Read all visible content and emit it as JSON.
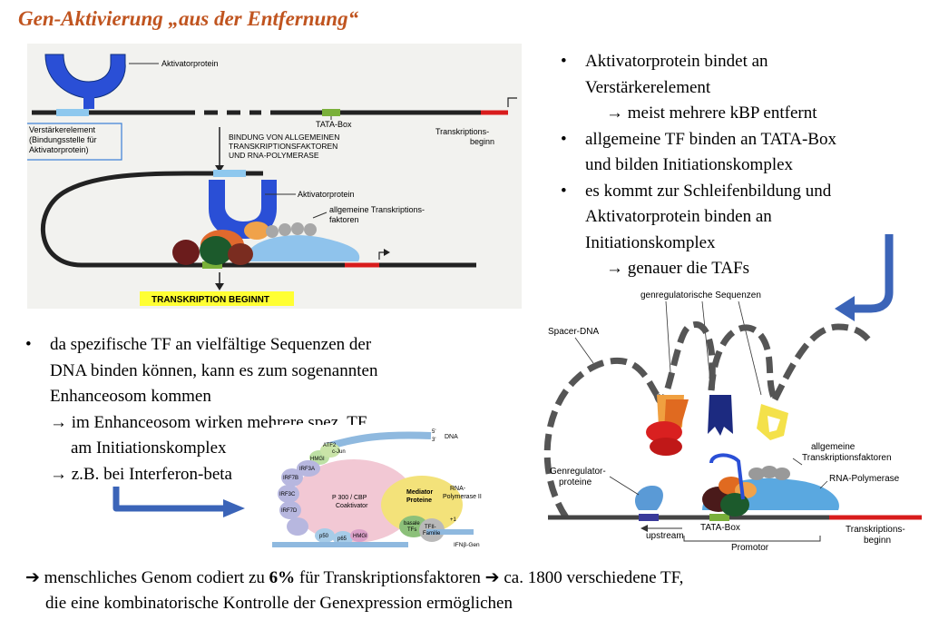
{
  "title": "Gen-Aktivierung „aus der Entfernung“",
  "right_bullets": [
    {
      "lines": [
        "Aktivatorprotein bindet an",
        "Verstärkerelement"
      ],
      "sub": "→ meist mehrere kBP entfernt"
    },
    {
      "lines": [
        "allgemeine TF binden an TATA-Box",
        "und bilden Initiationskomplex"
      ],
      "sub": ""
    },
    {
      "lines": [
        "es kommt zur Schleifenbildung und",
        "Aktivatorprotein binden an",
        "Initiationskomplex"
      ],
      "sub": "→ genauer die TAFs"
    }
  ],
  "left_bullet": {
    "lines": [
      "da spezifische TF an vielfältige Sequenzen der",
      "DNA binden können, kann es zum sogenannten",
      "Enhanceosom kommen"
    ],
    "subs": [
      "→ im Enhanceosom wirken mehrere spez. TF",
      "am Initiationskomplex",
      "→ z.B. bei Interferon-beta"
    ]
  },
  "bottom": {
    "line1_pre": "➔ menschliches Genom codiert zu ",
    "line1_bold": "6%",
    "line1_post": " für Transkriptionsfaktoren ➔ ca. 1800 verschiedene TF,",
    "line2": "die eine kombinatorische Kontrolle der Genexpression ermöglichen"
  },
  "fig1": {
    "aktivator": "Aktivatorprotein",
    "tata": "TATA-Box",
    "verst": [
      "Verstärkerelement",
      "(Bindungsstelle für",
      "Aktivatorprotein)"
    ],
    "bindung": [
      "BINDUNG VON ALLGEMEINEN",
      "TRANSKRIPTIONSFAKTOREN",
      "UND RNA-POLYMERASE"
    ],
    "tbeginn": [
      "Transkriptions-",
      "beginn"
    ],
    "aktivator2": "Aktivatorprotein",
    "allg": [
      "allgemeine Transkriptions-",
      "faktoren"
    ],
    "banner": "TRANSKRIPTION BEGINNT"
  },
  "fig2": {
    "dna": "DNA",
    "hmg1": "HMGI",
    "atf2": "ATF2",
    "cjun": "c-Jun",
    "irf3a": "IRF3A",
    "irf7b": "IRF7B",
    "irf3c": "IRF3C",
    "irf7d": "IRF7D",
    "p50": "p50",
    "p65": "p65",
    "hmg2": "HMGI",
    "p300": [
      "P 300 / CBP",
      "Coaktivator"
    ],
    "mediator": [
      "Mediator",
      "Proteine"
    ],
    "rnapol": [
      "RNA-",
      "Polymerase II"
    ],
    "basale": [
      "basale",
      "TFs"
    ],
    "tfii": [
      "TFII-",
      "Familie"
    ],
    "plus1": "+1",
    "gene": "IFNβ-Gen"
  },
  "fig3": {
    "genreg_seq": "genregulatorische Sequenzen",
    "spacer": "Spacer-DNA",
    "allg": [
      "allgemeine",
      "Transkriptionsfaktoren"
    ],
    "rnapol": "RNA-Polymerase",
    "genreg_prot": [
      "Genregulator-",
      "proteine"
    ],
    "tata": "TATA-Box",
    "upstream": "upstream",
    "promotor": "Promotor",
    "tbeginn": [
      "Transkriptions-",
      "beginn"
    ]
  },
  "colors": {
    "title": "#c0541f",
    "arrow_blue": "#3b64b8",
    "banner": "#ffff33",
    "activator": "#2a4fd6",
    "polymerase": "#5aa8e0"
  }
}
